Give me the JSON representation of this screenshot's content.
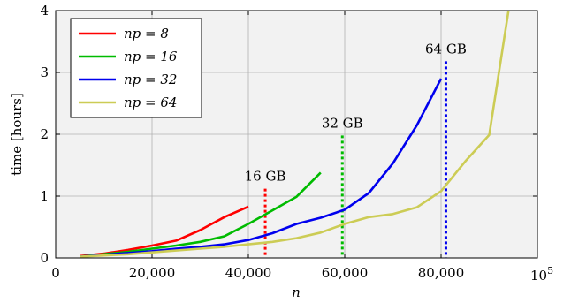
{
  "chart_data": {
    "type": "line",
    "xlabel": "n",
    "ylabel": "time [hours]",
    "xlim": [
      0,
      100000
    ],
    "ylim": [
      0,
      4
    ],
    "x_ticks": [
      0,
      20000,
      40000,
      60000,
      80000
    ],
    "x_tick_labels": [
      "0",
      "20,000",
      "40,000",
      "60,000",
      "80,000"
    ],
    "x_scale_label": "10",
    "x_scale_exponent": "5",
    "y_ticks": [
      0,
      1,
      2,
      3,
      4
    ],
    "y_tick_labels": [
      "0",
      "1",
      "2",
      "3",
      "4"
    ],
    "grid": true,
    "legend_position": "top-left",
    "series": [
      {
        "name": "np = 8",
        "color": "#ff0000",
        "x": [
          5000,
          10000,
          15000,
          20000,
          25000,
          30000,
          35000,
          40000
        ],
        "y": [
          0.03,
          0.07,
          0.13,
          0.2,
          0.28,
          0.45,
          0.66,
          0.83
        ]
      },
      {
        "name": "np = 16",
        "color": "#00bb00",
        "x": [
          5000,
          10000,
          15000,
          20000,
          25000,
          30000,
          35000,
          40000,
          45000,
          50000,
          55000
        ],
        "y": [
          0.02,
          0.06,
          0.1,
          0.15,
          0.2,
          0.26,
          0.35,
          0.55,
          0.77,
          0.99,
          1.38
        ]
      },
      {
        "name": "np = 32",
        "color": "#0000ee",
        "x": [
          5000,
          10000,
          15000,
          20000,
          25000,
          30000,
          35000,
          40000,
          45000,
          50000,
          55000,
          60000,
          65000,
          70000,
          75000,
          80000
        ],
        "y": [
          0.02,
          0.05,
          0.08,
          0.11,
          0.15,
          0.18,
          0.22,
          0.29,
          0.4,
          0.55,
          0.65,
          0.78,
          1.05,
          1.53,
          2.15,
          2.9
        ]
      },
      {
        "name": "np = 64",
        "color": "#cccc55",
        "x": [
          5000,
          10000,
          15000,
          20000,
          25000,
          30000,
          35000,
          40000,
          45000,
          50000,
          55000,
          60000,
          65000,
          70000,
          75000,
          80000,
          85000,
          90000,
          94000
        ],
        "y": [
          0.02,
          0.04,
          0.06,
          0.09,
          0.12,
          0.15,
          0.18,
          0.22,
          0.26,
          0.32,
          0.41,
          0.55,
          0.66,
          0.71,
          0.82,
          1.08,
          1.56,
          1.99,
          4.0
        ]
      }
    ],
    "annotations": [
      {
        "text": "16 GB",
        "x": 43500,
        "y_top": 1.12,
        "color": "#ff0000"
      },
      {
        "text": "32 GB",
        "x": 59500,
        "y_top": 1.98,
        "color": "#00bb00"
      },
      {
        "text": "64 GB",
        "x": 81000,
        "y_top": 3.18,
        "color": "#0000ee"
      }
    ]
  }
}
